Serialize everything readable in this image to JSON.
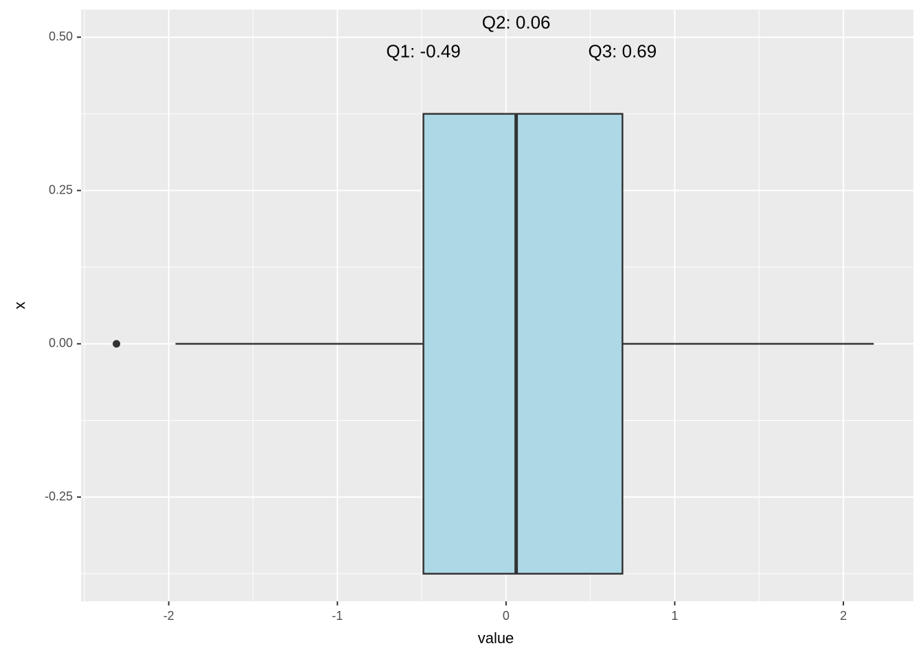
{
  "chart_data": {
    "type": "boxplot",
    "orientation": "horizontal",
    "xlabel": "value",
    "ylabel": "x",
    "xlim": [
      -2.52,
      2.415
    ],
    "ylim": [
      -0.42,
      0.545
    ],
    "xticks": [
      -2,
      -1,
      0,
      1,
      2
    ],
    "yticks": [
      {
        "value": -0.25,
        "label": "-0.25"
      },
      {
        "value": 0,
        "label": "0.00"
      },
      {
        "value": 0.25,
        "label": "0.25"
      },
      {
        "value": 0.5,
        "label": "0.50"
      }
    ],
    "grid": true,
    "color": "#add8e6",
    "edge_color": "#333333",
    "boxes": [
      {
        "y": 0,
        "whislo": -1.96,
        "q1": -0.49,
        "med": 0.06,
        "q3": 0.69,
        "whishi": 2.18,
        "fliers": [
          -2.31
        ]
      }
    ],
    "annotations": [
      {
        "text": "Q1:  -0.49",
        "y": 0.475
      },
      {
        "text": "Q2:  0.06",
        "y": 0.522
      },
      {
        "text": "Q3:  0.69",
        "y": 0.475
      }
    ]
  }
}
